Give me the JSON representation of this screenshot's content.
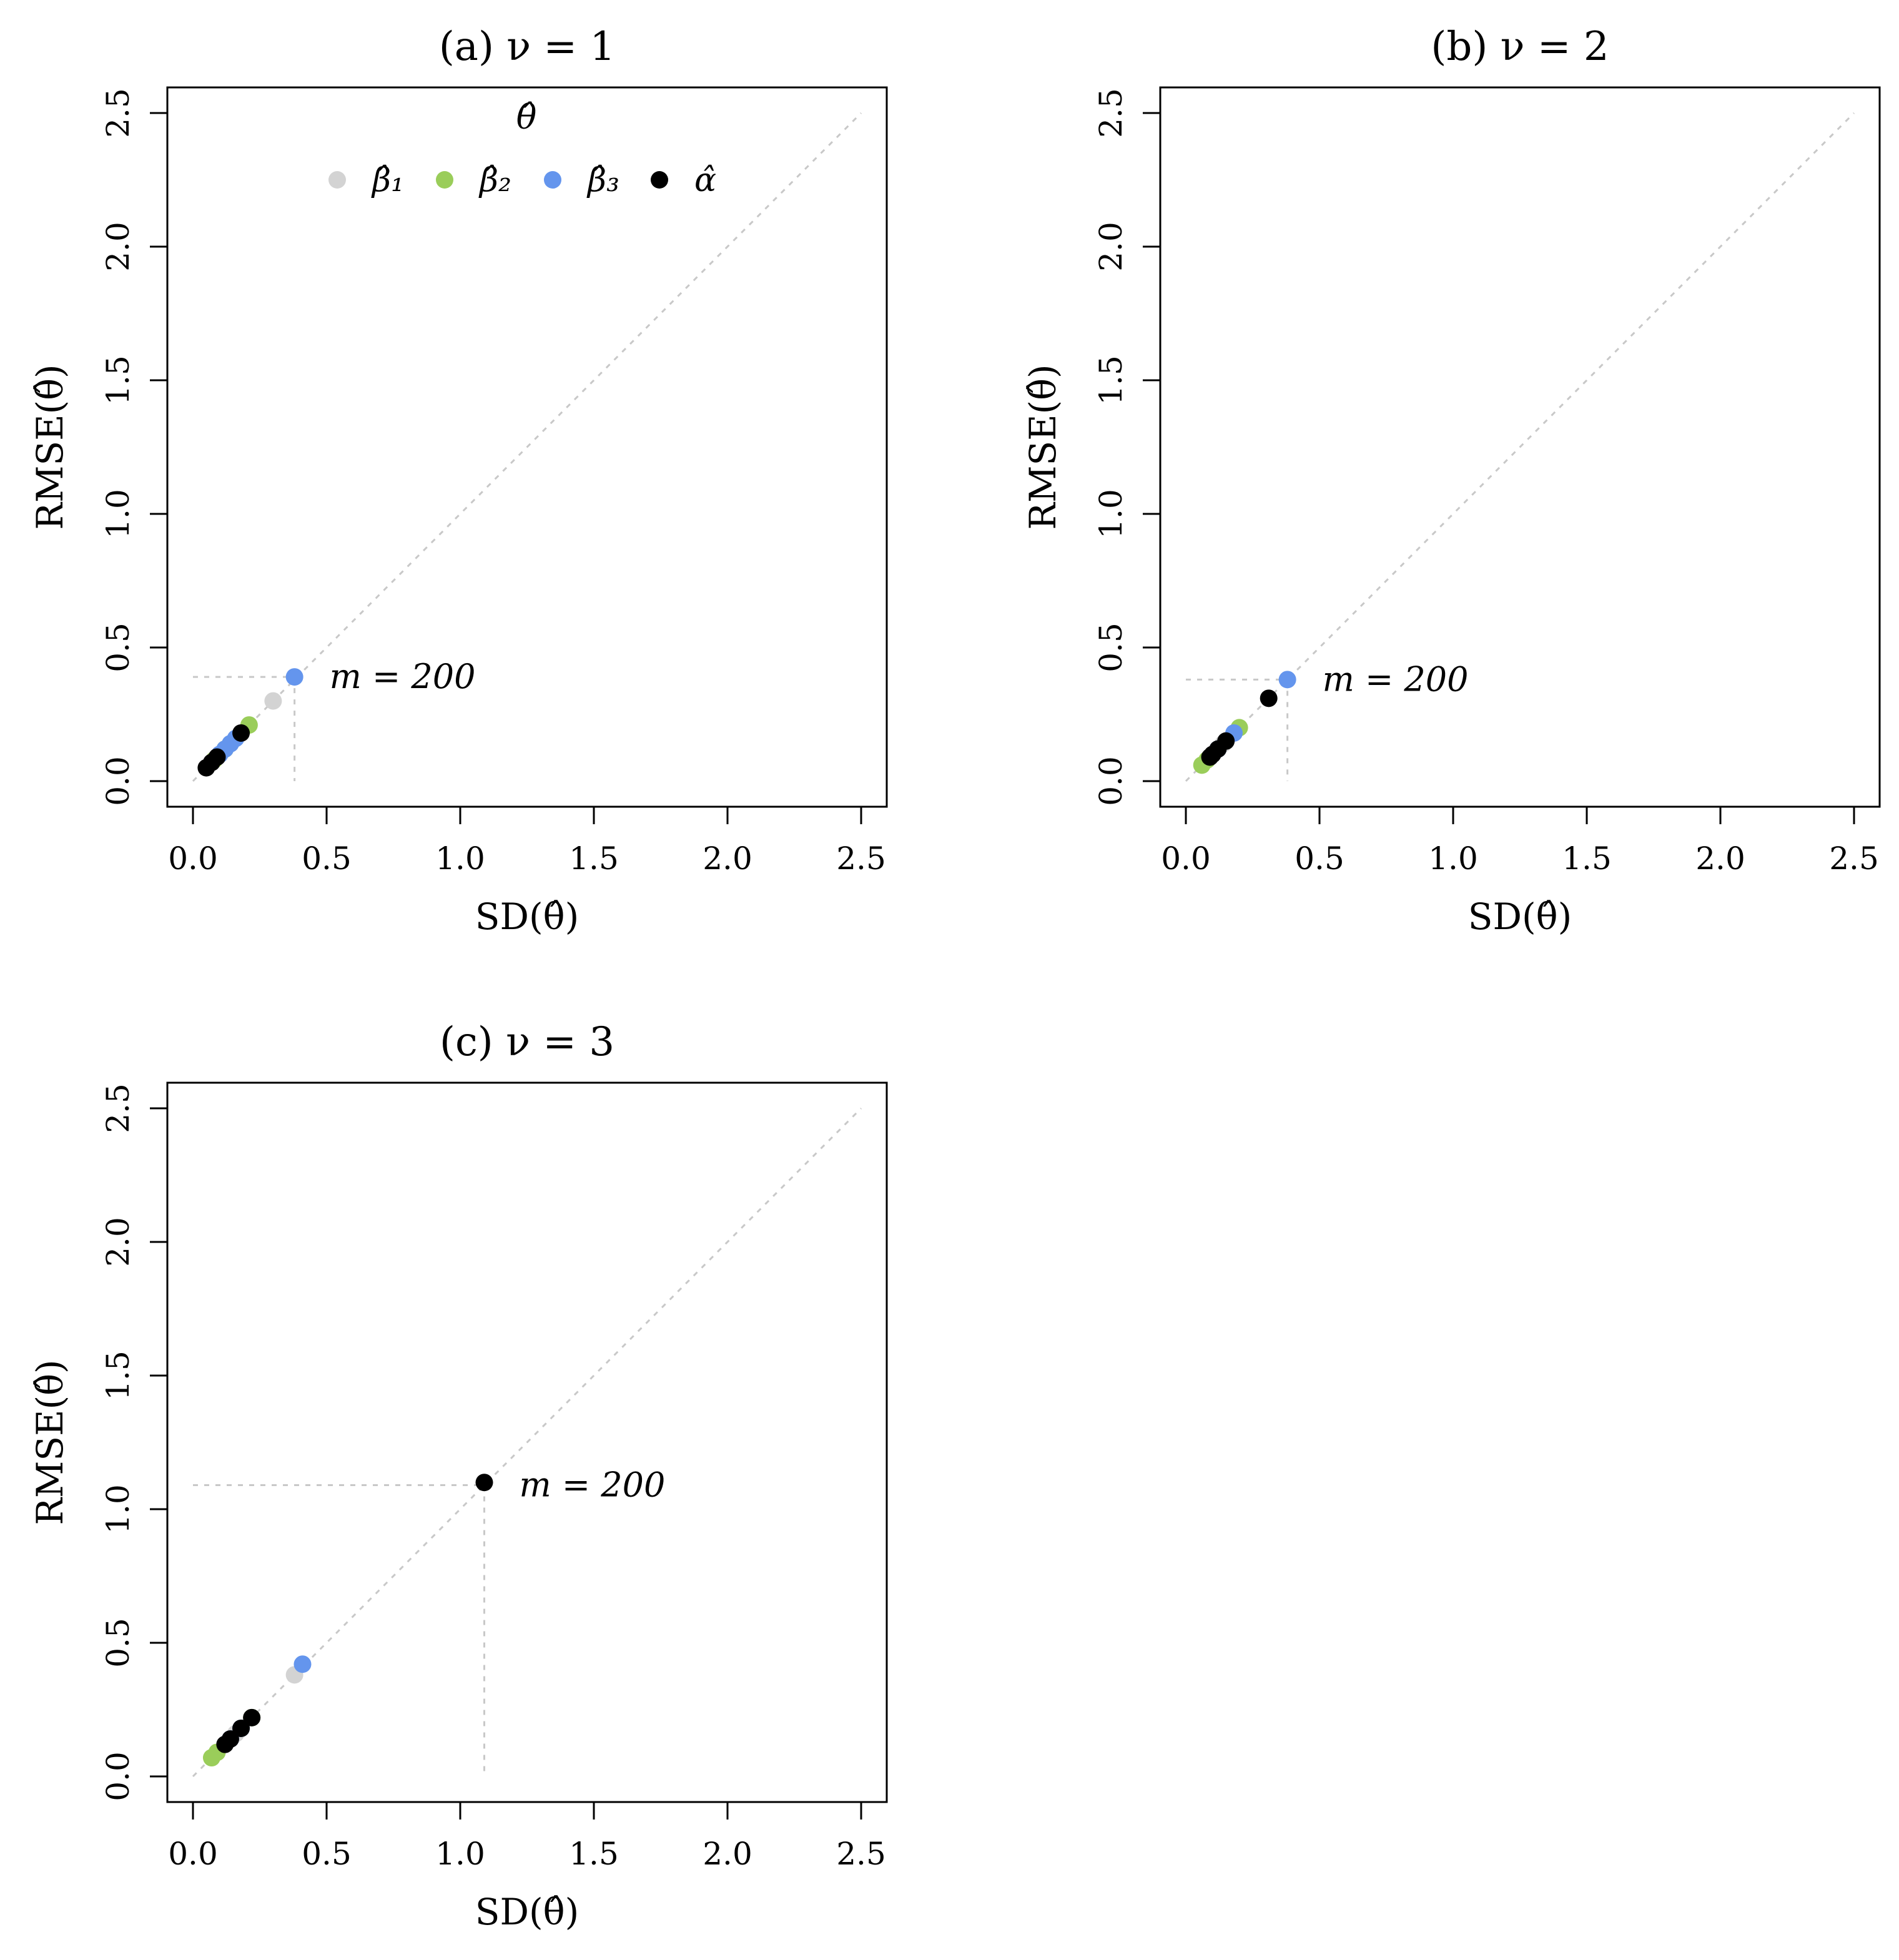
{
  "colors": {
    "beta1": "#d3d3d3",
    "beta2": "#9acd5a",
    "beta3": "#6495ed",
    "alpha": "#000000",
    "reference": "#c8c8c8"
  },
  "legend": {
    "title": "θ̂",
    "entries": [
      {
        "label": "β̂₁",
        "color": "#d3d3d3"
      },
      {
        "label": "β̂₂",
        "color": "#9acd5a"
      },
      {
        "label": "β̂₃",
        "color": "#6495ed"
      },
      {
        "label": "α̂",
        "color": "#000000"
      }
    ]
  },
  "chart_data": [
    {
      "type": "scatter",
      "title": "(a) ν = 1",
      "xlabel": "SD(θ̂)",
      "ylabel": "RMSE(θ̂)",
      "xlim": [
        0,
        2.5
      ],
      "ylim": [
        0,
        2.5
      ],
      "ticks": [
        "0.0",
        "0.5",
        "1.0",
        "1.5",
        "2.0",
        "2.5"
      ],
      "annotation": {
        "text": "m = 200",
        "x": 0.38,
        "y": 0.39
      },
      "series": [
        {
          "name": "β̂₁",
          "points": [
            [
              0.3,
              0.3
            ],
            [
              0.14,
              0.14
            ],
            [
              0.1,
              0.1
            ]
          ]
        },
        {
          "name": "β̂₂",
          "points": [
            [
              0.21,
              0.21
            ],
            [
              0.12,
              0.12
            ],
            [
              0.08,
              0.08
            ]
          ]
        },
        {
          "name": "β̂₃",
          "points": [
            [
              0.38,
              0.39
            ],
            [
              0.16,
              0.16
            ],
            [
              0.14,
              0.14
            ],
            [
              0.12,
              0.12
            ],
            [
              0.1,
              0.1
            ]
          ]
        },
        {
          "name": "α̂",
          "points": [
            [
              0.18,
              0.18
            ],
            [
              0.09,
              0.09
            ],
            [
              0.07,
              0.07
            ],
            [
              0.05,
              0.05
            ]
          ]
        }
      ]
    },
    {
      "type": "scatter",
      "title": "(b) ν = 2",
      "xlabel": "SD(θ̂)",
      "ylabel": "RMSE(θ̂)",
      "xlim": [
        0,
        2.5
      ],
      "ylim": [
        0,
        2.5
      ],
      "ticks": [
        "0.0",
        "0.5",
        "1.0",
        "1.5",
        "2.0",
        "2.5"
      ],
      "annotation": {
        "text": "m = 200",
        "x": 0.38,
        "y": 0.38
      },
      "series": [
        {
          "name": "β̂₁",
          "points": [
            [
              0.14,
              0.14
            ],
            [
              0.1,
              0.1
            ]
          ]
        },
        {
          "name": "β̂₂",
          "points": [
            [
              0.2,
              0.2
            ],
            [
              0.06,
              0.06
            ],
            [
              0.08,
              0.08
            ]
          ]
        },
        {
          "name": "β̂₃",
          "points": [
            [
              0.38,
              0.38
            ],
            [
              0.18,
              0.18
            ],
            [
              0.12,
              0.12
            ]
          ]
        },
        {
          "name": "α̂",
          "points": [
            [
              0.31,
              0.31
            ],
            [
              0.15,
              0.15
            ],
            [
              0.12,
              0.12
            ],
            [
              0.1,
              0.1
            ],
            [
              0.09,
              0.09
            ]
          ]
        }
      ]
    },
    {
      "type": "scatter",
      "title": "(c) ν = 3",
      "xlabel": "SD(θ̂)",
      "ylabel": "RMSE(θ̂)",
      "xlim": [
        0,
        2.5
      ],
      "ylim": [
        0,
        2.5
      ],
      "ticks": [
        "0.0",
        "0.5",
        "1.0",
        "1.5",
        "2.0",
        "2.5"
      ],
      "annotation": {
        "text": "m = 200",
        "x": 1.09,
        "y": 1.09
      },
      "series": [
        {
          "name": "β̂₁",
          "points": [
            [
              0.38,
              0.38
            ],
            [
              0.16,
              0.16
            ]
          ]
        },
        {
          "name": "β̂₂",
          "points": [
            [
              0.22,
              0.22
            ],
            [
              0.07,
              0.07
            ],
            [
              0.09,
              0.09
            ]
          ]
        },
        {
          "name": "β̂₃",
          "points": [
            [
              0.41,
              0.42
            ],
            [
              0.18,
              0.18
            ],
            [
              0.14,
              0.14
            ]
          ]
        },
        {
          "name": "α̂",
          "points": [
            [
              1.09,
              1.1
            ],
            [
              0.22,
              0.22
            ],
            [
              0.18,
              0.18
            ],
            [
              0.14,
              0.14
            ],
            [
              0.12,
              0.12
            ]
          ]
        }
      ]
    }
  ]
}
